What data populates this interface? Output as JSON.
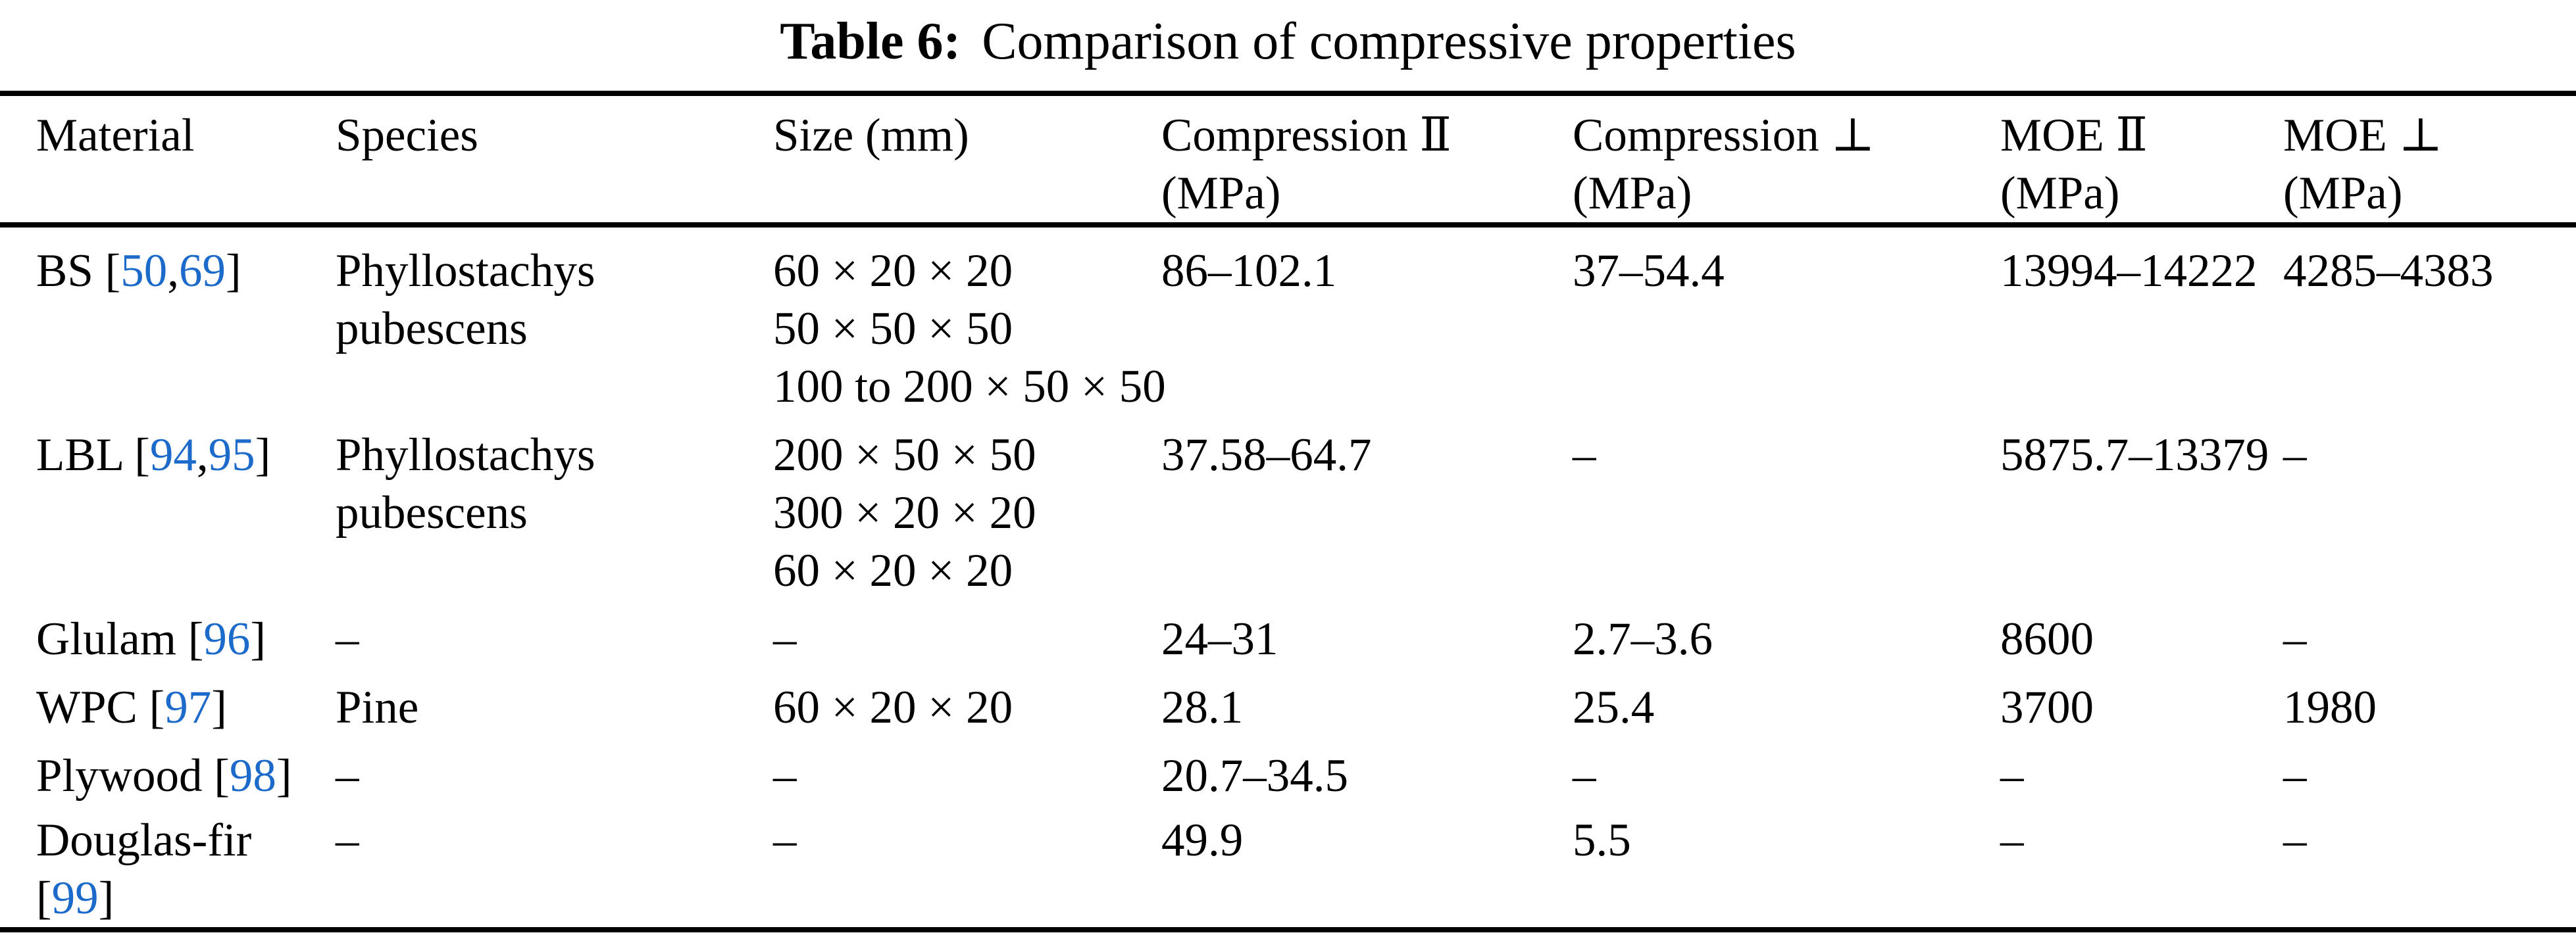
{
  "page": {
    "background": "#ffffff",
    "text_color": "#000000",
    "link_color": "#1c6ac9"
  },
  "title": {
    "label": "Table 6:",
    "text": "Comparison of compressive properties"
  },
  "table": {
    "headers": [
      {
        "line1": "Material",
        "line2": ""
      },
      {
        "line1": "Species",
        "line2": ""
      },
      {
        "line1": "Size (mm)",
        "line2": ""
      },
      {
        "line1": "Compression Ⅱ",
        "line2": "(MPa)"
      },
      {
        "line1": "Compression ⊥",
        "line2": "(MPa)"
      },
      {
        "line1": "MOE Ⅱ",
        "line2": "(MPa)"
      },
      {
        "line1": "MOE ⊥",
        "line2": "(MPa)"
      }
    ],
    "rows": [
      {
        "material": {
          "name": "BS",
          "refs": [
            "50",
            "69"
          ],
          "refs_new_line": false
        },
        "species": [
          "Phyllostachys",
          "pubescens"
        ],
        "size": [
          "60 × 20 × 20",
          "50 × 50 × 50",
          "100 to 200 × 50 × 50"
        ],
        "compression_parallel": "86–102.1",
        "compression_perpendicular": "37–54.4",
        "moe_parallel": "13994–14222",
        "moe_perpendicular": "4285–4383"
      },
      {
        "material": {
          "name": "LBL",
          "refs": [
            "94",
            "95"
          ],
          "refs_new_line": false
        },
        "species": [
          "Phyllostachys",
          "pubescens"
        ],
        "size": [
          "200 × 50 × 50",
          "300 × 20 × 20",
          "60 × 20 × 20"
        ],
        "compression_parallel": "37.58–64.7",
        "compression_perpendicular": "–",
        "moe_parallel": "5875.7–13379",
        "moe_perpendicular": "–"
      },
      {
        "material": {
          "name": "Glulam",
          "refs": [
            "96"
          ],
          "refs_new_line": false
        },
        "species": [
          "–"
        ],
        "size": [
          "–"
        ],
        "compression_parallel": "24–31",
        "compression_perpendicular": "2.7–3.6",
        "moe_parallel": "8600",
        "moe_perpendicular": "–"
      },
      {
        "material": {
          "name": "WPC",
          "refs": [
            "97"
          ],
          "refs_new_line": false
        },
        "species": [
          "Pine"
        ],
        "size": [
          "60 × 20 × 20"
        ],
        "compression_parallel": "28.1",
        "compression_perpendicular": "25.4",
        "moe_parallel": "3700",
        "moe_perpendicular": "1980"
      },
      {
        "material": {
          "name": "Plywood",
          "refs": [
            "98"
          ],
          "refs_new_line": false
        },
        "species": [
          "–"
        ],
        "size": [
          "–"
        ],
        "compression_parallel": "20.7–34.5",
        "compression_perpendicular": "–",
        "moe_parallel": "–",
        "moe_perpendicular": "–"
      },
      {
        "material": {
          "name": "Douglas-fir",
          "refs": [
            "99"
          ],
          "refs_new_line": true
        },
        "species": [
          "–"
        ],
        "size": [
          "–"
        ],
        "compression_parallel": "49.9",
        "compression_perpendicular": "5.5",
        "moe_parallel": "–",
        "moe_perpendicular": "–"
      }
    ]
  }
}
